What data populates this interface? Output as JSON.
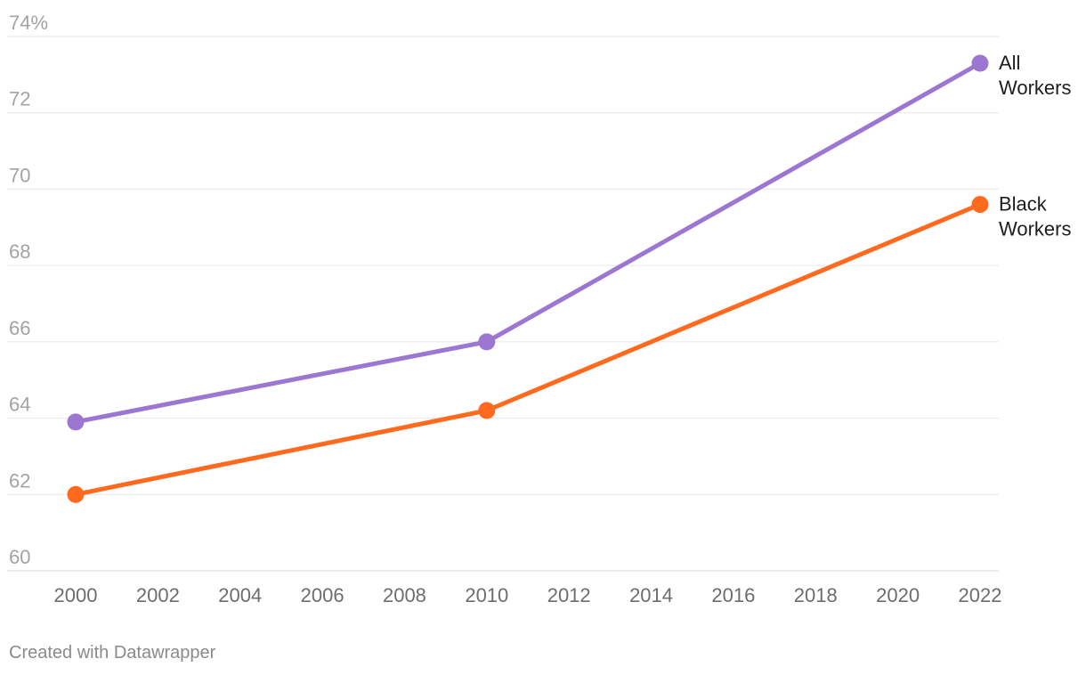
{
  "chart_data": {
    "type": "line",
    "x": [
      2000,
      2010,
      2022
    ],
    "x_ticks": [
      "2000",
      "2002",
      "2004",
      "2006",
      "2008",
      "2010",
      "2012",
      "2014",
      "2016",
      "2018",
      "2020",
      "2022"
    ],
    "y_ticks": [
      "74%",
      "72",
      "70",
      "68",
      "66",
      "64",
      "62",
      "60"
    ],
    "ylim": [
      60,
      74
    ],
    "xlim": [
      2000,
      2022
    ],
    "grid": true,
    "legend": "direct labels at line ends",
    "series": [
      {
        "name": "All Workers",
        "label_lines": [
          "All",
          "Workers"
        ],
        "color": "#9b77d2",
        "values": [
          63.9,
          66.0,
          73.3
        ]
      },
      {
        "name": "Black Workers",
        "label_lines": [
          "Black",
          "Workers"
        ],
        "color": "#ff6a1f",
        "values": [
          62.0,
          64.2,
          69.6
        ]
      }
    ]
  },
  "footer": {
    "credit": "Created with Datawrapper"
  }
}
